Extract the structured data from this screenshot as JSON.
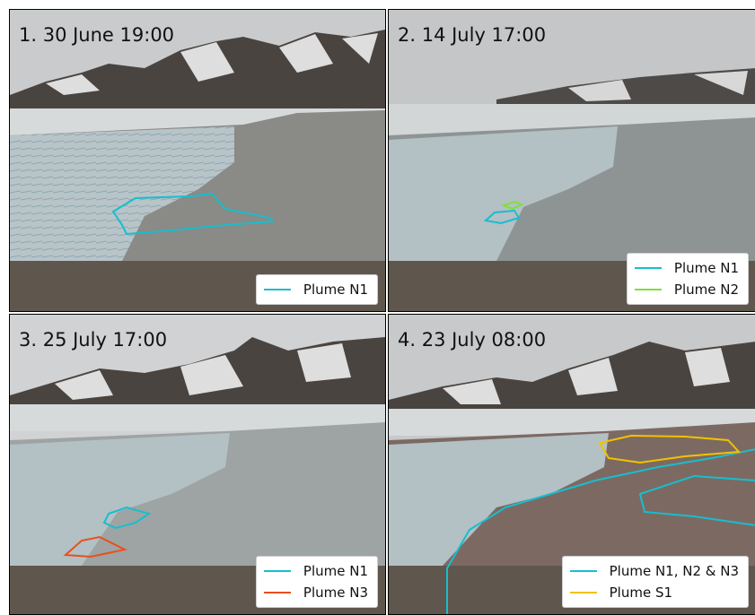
{
  "panels": [
    {
      "title": "1. 30 June 19:00",
      "legend": [
        {
          "label": "Plume N1",
          "color": "#17becf"
        }
      ]
    },
    {
      "title": "2. 14 July 17:00",
      "legend": [
        {
          "label": "Plume N1",
          "color": "#17becf"
        },
        {
          "label": "Plume N2",
          "color": "#7fe03a"
        }
      ]
    },
    {
      "title": "3. 25 July 17:00",
      "legend": [
        {
          "label": "Plume N1",
          "color": "#17becf"
        },
        {
          "label": "Plume N3",
          "color": "#e8501f"
        }
      ]
    },
    {
      "title": "4. 23 July 08:00",
      "legend": [
        {
          "label": "Plume N1, N2 & N3",
          "color": "#17becf"
        },
        {
          "label": "Plume S1",
          "color": "#f2c200"
        }
      ]
    }
  ],
  "colors": {
    "sky": "#c9cbcc",
    "mountain_rock": "#4a4440",
    "snow": "#eef0f0",
    "glacier": "#b8c4c8",
    "fjord_water": "#8a8a86",
    "shore": "#5f574d"
  }
}
